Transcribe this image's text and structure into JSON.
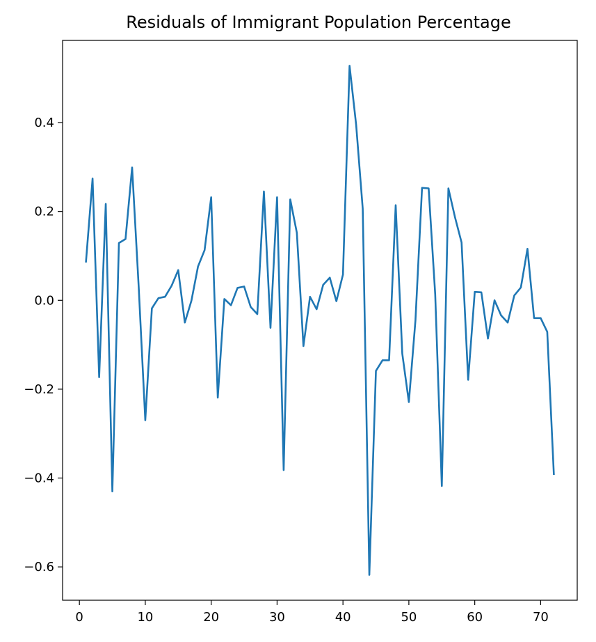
{
  "chart_data": {
    "type": "line",
    "title": "Residuals of Immigrant Population Percentage",
    "xlabel": "",
    "ylabel": "",
    "xlim": [
      -2.55,
      75.55
    ],
    "ylim": [
      -0.675,
      0.585
    ],
    "xticks": [
      0,
      10,
      20,
      30,
      40,
      50,
      60,
      70
    ],
    "yticks": [
      -0.6,
      -0.4,
      -0.2,
      0.0,
      0.2,
      0.4
    ],
    "xtick_labels": [
      "0",
      "10",
      "20",
      "30",
      "40",
      "50",
      "60",
      "70"
    ],
    "ytick_labels": [
      "−0.6",
      "−0.4",
      "−0.2",
      "0.0",
      "0.2",
      "0.4"
    ],
    "grid": false,
    "legend": "none",
    "series": [
      {
        "color": "#1f77b4",
        "x": [
          1,
          2,
          3,
          4,
          5,
          6,
          7,
          8,
          9,
          10,
          11,
          12,
          13,
          14,
          15,
          16,
          17,
          18,
          19,
          20,
          21,
          22,
          23,
          24,
          25,
          26,
          27,
          28,
          29,
          30,
          31,
          32,
          33,
          34,
          35,
          36,
          37,
          38,
          39,
          40,
          41,
          42,
          43,
          44,
          45,
          46,
          47,
          48,
          49,
          50,
          51,
          52,
          53,
          54,
          55,
          56,
          57,
          58,
          59,
          60,
          61,
          62,
          63,
          64,
          65,
          66,
          67,
          68,
          69,
          70,
          71,
          72
        ],
        "values": [
          0.087,
          0.274,
          -0.173,
          0.217,
          -0.43,
          0.129,
          0.138,
          0.299,
          0.03,
          -0.27,
          -0.018,
          0.005,
          0.008,
          0.033,
          0.068,
          -0.05,
          -0.001,
          0.076,
          0.113,
          0.232,
          -0.219,
          0.003,
          -0.011,
          0.028,
          0.031,
          -0.015,
          -0.031,
          0.245,
          -0.062,
          0.232,
          -0.382,
          0.227,
          0.152,
          -0.103,
          0.008,
          -0.02,
          0.035,
          0.051,
          -0.002,
          0.058,
          0.528,
          0.395,
          0.206,
          -0.618,
          -0.159,
          -0.135,
          -0.135,
          0.214,
          -0.12,
          -0.229,
          -0.045,
          0.253,
          0.252,
          0.013,
          -0.418,
          0.252,
          0.187,
          0.13,
          -0.179,
          0.019,
          0.018,
          -0.086,
          0.0,
          -0.034,
          -0.05,
          0.011,
          0.029,
          0.116,
          -0.04,
          -0.04,
          -0.071,
          -0.391
        ]
      }
    ]
  }
}
